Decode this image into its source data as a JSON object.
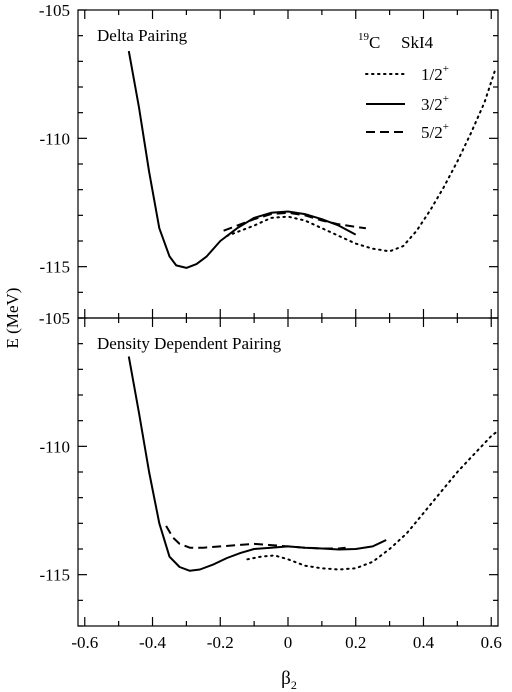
{
  "chart_data": [
    {
      "type": "line",
      "panel": "top",
      "title": "Delta Pairing",
      "annotation": "SkI4",
      "nucleus": {
        "mass": "19",
        "symbol": "C"
      },
      "xlim": [
        -0.62,
        0.62
      ],
      "ylim": [
        -117,
        -105
      ],
      "yticks": [
        "-105",
        "-110",
        "-115"
      ],
      "xticks": [],
      "legend_position": "top-right",
      "series": [
        {
          "name_main": "1/2",
          "name_sup": "+",
          "style": "dotted",
          "x": [
            -0.18,
            -0.1,
            -0.05,
            0.0,
            0.05,
            0.1,
            0.15,
            0.2,
            0.25,
            0.3,
            0.34,
            0.38,
            0.42,
            0.46,
            0.5,
            0.54,
            0.58,
            0.61
          ],
          "y": [
            -113.8,
            -113.4,
            -113.1,
            -113.05,
            -113.2,
            -113.5,
            -113.8,
            -114.1,
            -114.3,
            -114.4,
            -114.2,
            -113.6,
            -112.8,
            -111.9,
            -110.9,
            -109.8,
            -108.6,
            -107.4
          ]
        },
        {
          "name_main": "3/2",
          "name_sup": "+",
          "style": "solid",
          "x": [
            -0.47,
            -0.44,
            -0.41,
            -0.38,
            -0.35,
            -0.33,
            -0.3,
            -0.27,
            -0.24,
            -0.2,
            -0.15,
            -0.1,
            -0.05,
            0.0,
            0.05,
            0.1,
            0.15,
            0.2
          ],
          "y": [
            -106.6,
            -108.8,
            -111.3,
            -113.5,
            -114.6,
            -114.95,
            -115.05,
            -114.9,
            -114.6,
            -114.0,
            -113.5,
            -113.1,
            -112.9,
            -112.85,
            -112.95,
            -113.15,
            -113.4,
            -113.75
          ]
        },
        {
          "name_main": "5/2",
          "name_sup": "+",
          "style": "dashed",
          "x": [
            -0.19,
            -0.15,
            -0.1,
            -0.05,
            0.0,
            0.05,
            0.1,
            0.15,
            0.2,
            0.23
          ],
          "y": [
            -113.6,
            -113.4,
            -113.15,
            -112.95,
            -112.9,
            -113.0,
            -113.2,
            -113.35,
            -113.45,
            -113.5
          ]
        }
      ]
    },
    {
      "type": "line",
      "panel": "bottom",
      "title": "Density Dependent Pairing",
      "xlabel_main": "β",
      "xlabel_sub": "2",
      "ylabel": "E  (MeV)",
      "xlim": [
        -0.62,
        0.62
      ],
      "ylim": [
        -117,
        -105
      ],
      "yticks": [
        "-105",
        "-110",
        "-115"
      ],
      "xticks": [
        "-0.6",
        "-0.4",
        "-0.2",
        "0",
        "0.2",
        "0.4",
        "0.6"
      ],
      "series": [
        {
          "name_main": "1/2",
          "name_sup": "+",
          "style": "dotted",
          "x": [
            -0.12,
            -0.08,
            -0.04,
            0.0,
            0.05,
            0.1,
            0.15,
            0.2,
            0.25,
            0.3,
            0.35,
            0.4,
            0.45,
            0.5,
            0.55,
            0.6,
            0.62
          ],
          "y": [
            -114.4,
            -114.3,
            -114.25,
            -114.4,
            -114.65,
            -114.75,
            -114.8,
            -114.75,
            -114.5,
            -114.0,
            -113.4,
            -112.6,
            -111.8,
            -111.0,
            -110.3,
            -109.6,
            -109.4
          ]
        },
        {
          "name_main": "3/2",
          "name_sup": "+",
          "style": "solid",
          "x": [
            -0.47,
            -0.44,
            -0.41,
            -0.38,
            -0.35,
            -0.32,
            -0.29,
            -0.26,
            -0.22,
            -0.18,
            -0.14,
            -0.1,
            -0.05,
            0.0,
            0.05,
            0.1,
            0.15,
            0.2,
            0.25,
            0.29
          ],
          "y": [
            -106.5,
            -108.7,
            -111.0,
            -113.0,
            -114.3,
            -114.7,
            -114.85,
            -114.8,
            -114.6,
            -114.35,
            -114.15,
            -114.0,
            -113.95,
            -113.9,
            -113.95,
            -113.98,
            -114.02,
            -114.0,
            -113.9,
            -113.65
          ]
        },
        {
          "name_main": "5/2",
          "name_sup": "+",
          "style": "dashed",
          "x": [
            -0.36,
            -0.34,
            -0.32,
            -0.29,
            -0.25,
            -0.2,
            -0.15,
            -0.1,
            -0.05,
            0.0,
            0.05,
            0.1,
            0.15,
            0.17
          ],
          "y": [
            -113.1,
            -113.55,
            -113.8,
            -113.95,
            -113.95,
            -113.9,
            -113.85,
            -113.8,
            -113.85,
            -113.9,
            -113.95,
            -113.98,
            -113.98,
            -113.95
          ]
        }
      ]
    }
  ]
}
